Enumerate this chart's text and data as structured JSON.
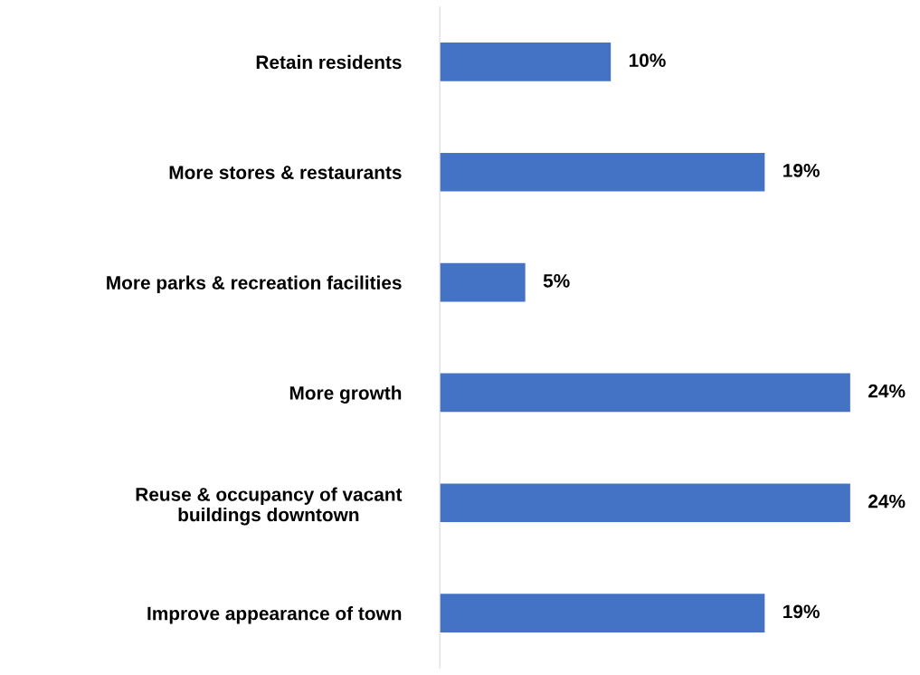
{
  "chart_data": {
    "type": "bar",
    "orientation": "horizontal",
    "categories": [
      "Retain residents",
      "More stores & restaurants",
      "More parks & recreation facilities",
      "More growth",
      "Reuse & occupancy of vacant\nbuildings downtown",
      "Improve appearance of town"
    ],
    "values": [
      10,
      19,
      5,
      24,
      24,
      19
    ],
    "value_labels": [
      "10%",
      "19%",
      "5%",
      "24%",
      "24%",
      "19%"
    ],
    "color": "#4472c4",
    "tick_labels": "y",
    "grid": false,
    "legend": false
  }
}
